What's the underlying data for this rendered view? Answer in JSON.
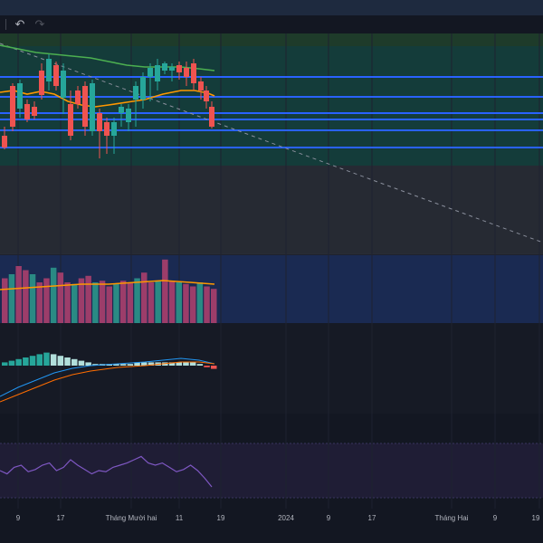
{
  "toolbar": {
    "undo_icon": "undo-icon",
    "redo_icon": "redo-icon",
    "undo_symbol": "↶",
    "redo_symbol": "↷"
  },
  "xaxis": {
    "labels": [
      "9",
      "17",
      "Tháng Mười hai",
      "11",
      "19",
      "2024",
      "9",
      "17",
      "Tháng Hai",
      "9",
      "19"
    ]
  },
  "colors": {
    "bull": "#26a69a",
    "bear": "#ef5350",
    "ma_long": "#4caf50",
    "ma_short": "#ff9800",
    "level_line": "#2962ff",
    "rsi": "#7e57c2"
  },
  "chart_data": [
    {
      "type": "candlestick",
      "pane": "price",
      "note_series": [
        "candles",
        "ma_short",
        "ma_long"
      ],
      "candles_direction": [
        "down",
        "up",
        "down",
        "up",
        "up",
        "down",
        "up",
        "down",
        "up",
        "down",
        "up",
        "down",
        "up",
        "down",
        "down",
        "up",
        "up",
        "up",
        "up",
        "up",
        "down",
        "up",
        "down",
        "up",
        "down",
        "down",
        "up",
        "up",
        "down",
        "down",
        "down"
      ],
      "levels_count": 5
    },
    {
      "type": "bar",
      "pane": "volume",
      "series": [
        {
          "values": [
            55,
            60,
            70,
            65,
            60,
            50,
            55,
            68,
            62,
            50,
            48,
            55,
            58,
            50,
            52,
            45,
            48,
            52,
            50,
            55,
            62,
            50,
            52,
            78,
            52,
            50,
            48,
            45,
            50,
            45,
            42
          ]
        }
      ]
    },
    {
      "type": "bar",
      "pane": "macd",
      "series": [
        {
          "values": [
            2,
            3,
            4,
            5,
            6,
            7,
            8,
            7,
            6,
            5,
            4,
            3,
            2,
            1,
            1,
            1,
            1,
            1,
            1,
            2,
            2,
            2,
            2,
            2,
            2,
            2,
            2,
            2,
            1,
            -1,
            -2
          ]
        }
      ]
    },
    {
      "type": "line",
      "pane": "rsi",
      "series": [
        {
          "values": [
            45,
            42,
            48,
            50,
            44,
            46,
            50,
            52,
            45,
            48,
            55,
            50,
            46,
            42,
            45,
            44,
            48,
            50,
            52,
            55,
            58,
            52,
            50,
            52,
            48,
            44,
            46,
            50,
            45,
            38,
            30
          ]
        }
      ]
    }
  ]
}
